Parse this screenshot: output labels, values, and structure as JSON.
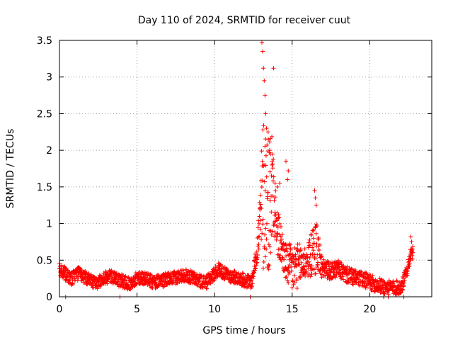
{
  "chart_data": {
    "type": "scatter",
    "title": "Day 110 of 2024, SRMTID for receiver cuut",
    "xlabel": "GPS time / hours",
    "ylabel": "SRMTID / TECUs",
    "xlim": [
      0,
      24
    ],
    "ylim": [
      0,
      3.5
    ],
    "x_ticks": [
      0,
      5,
      10,
      15,
      20
    ],
    "x_tick_labels": [
      "0",
      "5",
      "10",
      "15",
      "20"
    ],
    "y_ticks": [
      0,
      0.5,
      1,
      1.5,
      2,
      2.5,
      3,
      3.5
    ],
    "y_tick_labels": [
      "0",
      "0.5",
      "1",
      "1.5",
      "2",
      "2.5",
      "3",
      "3.5"
    ],
    "grid": true,
    "marker": "+",
    "series": [
      {
        "name": "SRMTID",
        "color": "#ff0000",
        "profile": {
          "x": [
            0.0,
            0.3,
            0.5,
            0.8,
            1.0,
            1.3,
            1.6,
            2.0,
            2.5,
            3.0,
            3.3,
            3.6,
            4.0,
            4.5,
            5.0,
            5.5,
            6.0,
            6.5,
            7.0,
            7.5,
            8.0,
            8.5,
            9.0,
            9.5,
            10.0,
            10.3,
            10.6,
            11.0,
            11.5,
            12.0,
            12.4,
            12.7,
            13.0,
            13.2,
            13.5,
            13.8,
            14.0,
            14.3,
            14.6,
            15.0,
            15.3,
            15.6,
            16.0,
            16.3,
            16.6,
            16.9,
            17.5,
            18.0,
            18.5,
            19.0,
            19.5,
            20.0,
            20.5,
            21.0,
            21.5,
            22.0,
            22.3,
            22.6,
            22.8
          ],
          "y": [
            0.38,
            0.33,
            0.28,
            0.24,
            0.3,
            0.32,
            0.27,
            0.22,
            0.2,
            0.26,
            0.28,
            0.24,
            0.22,
            0.18,
            0.25,
            0.26,
            0.2,
            0.22,
            0.24,
            0.26,
            0.3,
            0.27,
            0.22,
            0.2,
            0.32,
            0.38,
            0.32,
            0.28,
            0.26,
            0.22,
            0.2,
            0.6,
            1.1,
            1.5,
            1.3,
            1.6,
            0.9,
            0.7,
            0.45,
            0.38,
            0.42,
            0.45,
            0.48,
            0.6,
            0.7,
            0.4,
            0.35,
            0.38,
            0.3,
            0.26,
            0.24,
            0.2,
            0.16,
            0.13,
            0.12,
            0.13,
            0.28,
            0.55,
            0.6
          ]
        },
        "spread": {
          "x": [
            0.0,
            12.5,
            12.8,
            13.1,
            13.4,
            13.7,
            14.0,
            14.5,
            15.0,
            16.0,
            16.5,
            17.0,
            24.0
          ],
          "y": [
            0.09,
            0.09,
            0.25,
            1.1,
            1.0,
            0.9,
            0.35,
            0.25,
            0.35,
            0.22,
            0.4,
            0.12,
            0.09
          ]
        },
        "notable_points": [
          {
            "x": 13.05,
            "y": 3.47
          },
          {
            "x": 13.1,
            "y": 3.35
          },
          {
            "x": 13.15,
            "y": 3.12
          },
          {
            "x": 13.2,
            "y": 2.95
          },
          {
            "x": 13.25,
            "y": 2.75
          },
          {
            "x": 13.3,
            "y": 2.5
          },
          {
            "x": 13.35,
            "y": 2.3
          },
          {
            "x": 13.45,
            "y": 2.25
          },
          {
            "x": 13.55,
            "y": 2.0
          },
          {
            "x": 13.6,
            "y": 1.95
          },
          {
            "x": 13.7,
            "y": 1.8
          },
          {
            "x": 13.8,
            "y": 3.12
          },
          {
            "x": 13.9,
            "y": 1.55
          },
          {
            "x": 14.05,
            "y": 1.5
          },
          {
            "x": 14.2,
            "y": 1.55
          },
          {
            "x": 14.6,
            "y": 1.85
          },
          {
            "x": 14.7,
            "y": 1.6
          },
          {
            "x": 14.75,
            "y": 1.72
          },
          {
            "x": 16.45,
            "y": 1.45
          },
          {
            "x": 16.5,
            "y": 1.35
          },
          {
            "x": 16.55,
            "y": 1.25
          },
          {
            "x": 22.65,
            "y": 0.82
          },
          {
            "x": 22.7,
            "y": 0.75
          }
        ],
        "zero_points_x": [
          0.4,
          3.9,
          12.3,
          20.9,
          21.2,
          22.2
        ]
      }
    ]
  }
}
